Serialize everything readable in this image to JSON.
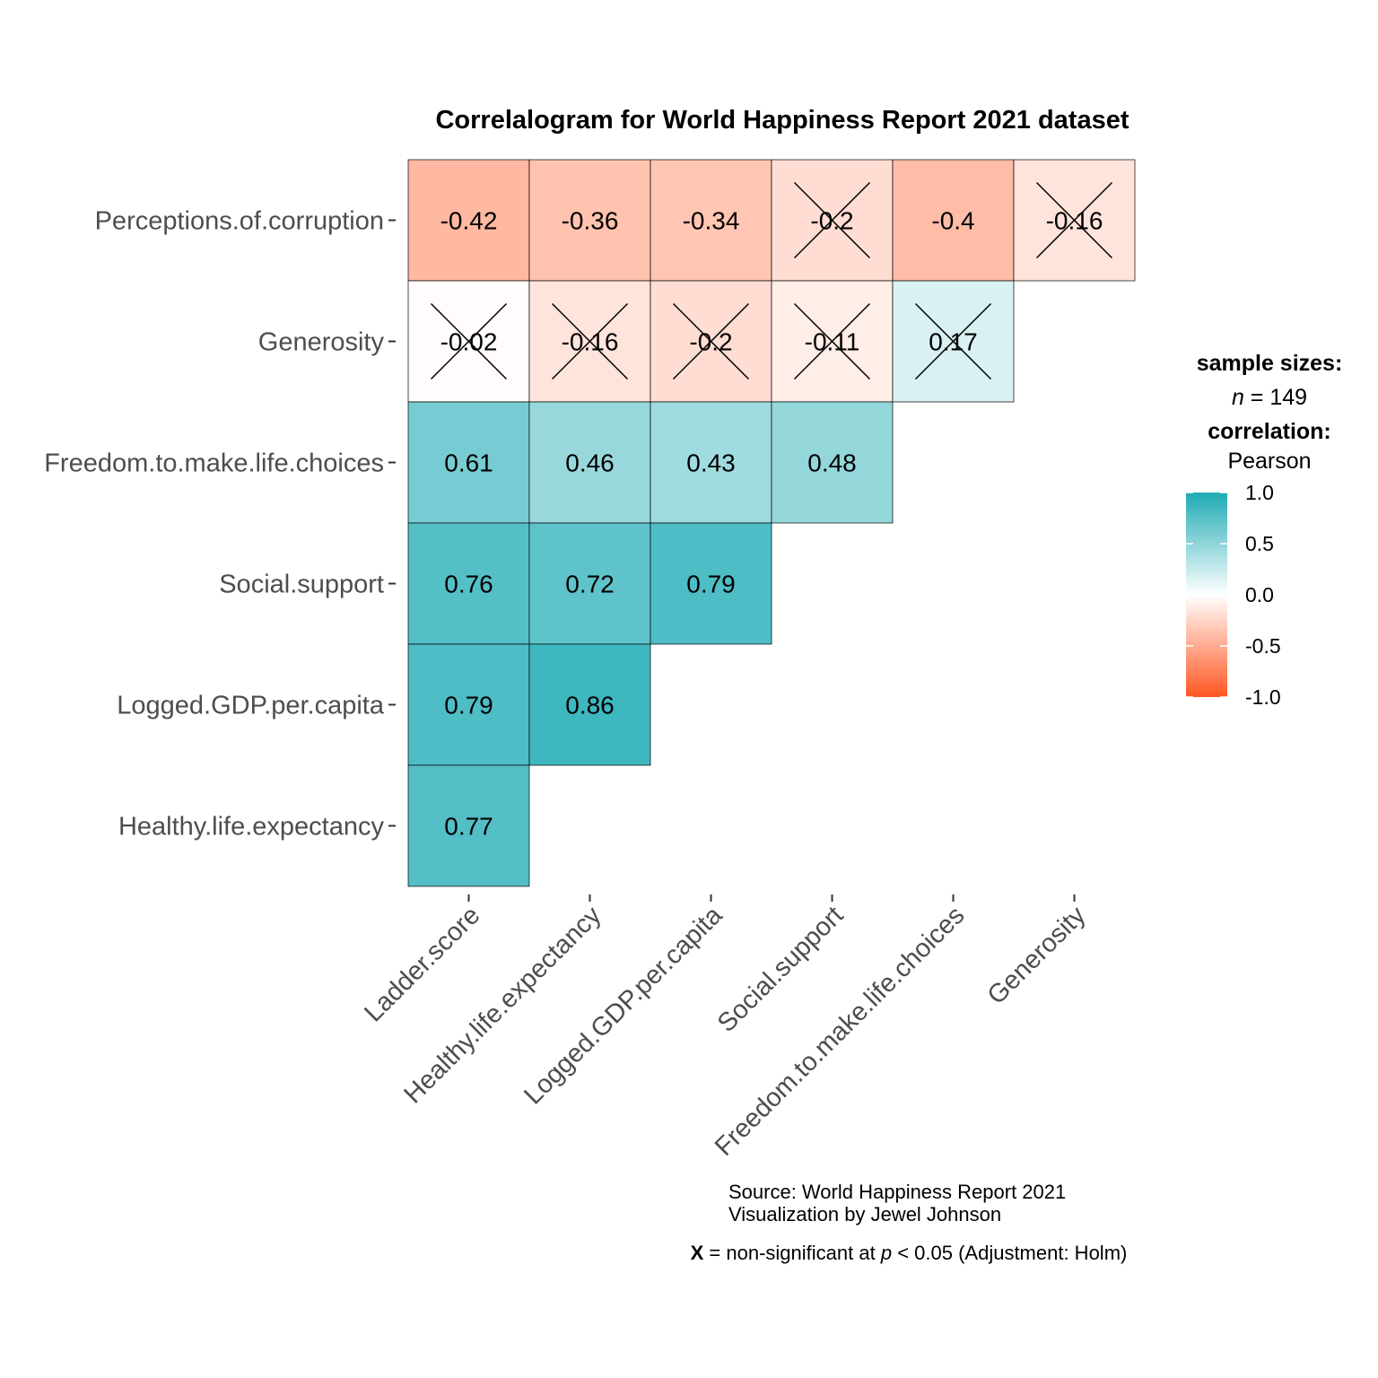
{
  "chart_data": {
    "type": "heatmap",
    "title": "Correlalogram for World Happiness Report 2021 dataset",
    "x_categories": [
      "Ladder.score",
      "Healthy.life.expectancy",
      "Logged.GDP.per.capita",
      "Social.support",
      "Freedom.to.make.life.choices",
      "Generosity"
    ],
    "y_categories": [
      "Perceptions.of.corruption",
      "Generosity",
      "Freedom.to.make.life.choices",
      "Social.support",
      "Logged.GDP.per.capita",
      "Healthy.life.expectancy"
    ],
    "cells": [
      {
        "x": "Ladder.score",
        "y": "Perceptions.of.corruption",
        "value": -0.42,
        "label": "-0.42",
        "significant": true
      },
      {
        "x": "Healthy.life.expectancy",
        "y": "Perceptions.of.corruption",
        "value": -0.36,
        "label": "-0.36",
        "significant": true
      },
      {
        "x": "Logged.GDP.per.capita",
        "y": "Perceptions.of.corruption",
        "value": -0.34,
        "label": "-0.34",
        "significant": true
      },
      {
        "x": "Social.support",
        "y": "Perceptions.of.corruption",
        "value": -0.2,
        "label": "-0.2",
        "significant": false
      },
      {
        "x": "Freedom.to.make.life.choices",
        "y": "Perceptions.of.corruption",
        "value": -0.4,
        "label": "-0.4",
        "significant": true
      },
      {
        "x": "Generosity",
        "y": "Perceptions.of.corruption",
        "value": -0.16,
        "label": "-0.16",
        "significant": false
      },
      {
        "x": "Ladder.score",
        "y": "Generosity",
        "value": -0.02,
        "label": "-0.02",
        "significant": false
      },
      {
        "x": "Healthy.life.expectancy",
        "y": "Generosity",
        "value": -0.16,
        "label": "-0.16",
        "significant": false
      },
      {
        "x": "Logged.GDP.per.capita",
        "y": "Generosity",
        "value": -0.2,
        "label": "-0.2",
        "significant": false
      },
      {
        "x": "Social.support",
        "y": "Generosity",
        "value": -0.11,
        "label": "-0.11",
        "significant": false
      },
      {
        "x": "Freedom.to.make.life.choices",
        "y": "Generosity",
        "value": 0.17,
        "label": "0.17",
        "significant": false
      },
      {
        "x": "Ladder.score",
        "y": "Freedom.to.make.life.choices",
        "value": 0.61,
        "label": "0.61",
        "significant": true
      },
      {
        "x": "Healthy.life.expectancy",
        "y": "Freedom.to.make.life.choices",
        "value": 0.46,
        "label": "0.46",
        "significant": true
      },
      {
        "x": "Logged.GDP.per.capita",
        "y": "Freedom.to.make.life.choices",
        "value": 0.43,
        "label": "0.43",
        "significant": true
      },
      {
        "x": "Social.support",
        "y": "Freedom.to.make.life.choices",
        "value": 0.48,
        "label": "0.48",
        "significant": true
      },
      {
        "x": "Ladder.score",
        "y": "Social.support",
        "value": 0.76,
        "label": "0.76",
        "significant": true
      },
      {
        "x": "Healthy.life.expectancy",
        "y": "Social.support",
        "value": 0.72,
        "label": "0.72",
        "significant": true
      },
      {
        "x": "Logged.GDP.per.capita",
        "y": "Social.support",
        "value": 0.79,
        "label": "0.79",
        "significant": true
      },
      {
        "x": "Ladder.score",
        "y": "Logged.GDP.per.capita",
        "value": 0.79,
        "label": "0.79",
        "significant": true
      },
      {
        "x": "Healthy.life.expectancy",
        "y": "Logged.GDP.per.capita",
        "value": 0.86,
        "label": "0.86",
        "significant": true
      },
      {
        "x": "Ladder.score",
        "y": "Healthy.life.expectancy",
        "value": 0.77,
        "label": "0.77",
        "significant": true
      }
    ],
    "legend": {
      "sample_sizes_title": "sample sizes:",
      "n_symbol": "n",
      "n_rest": " = 149",
      "correlation_title": "correlation:",
      "method": "Pearson",
      "ticks": [
        1.0,
        0.5,
        0.0,
        -0.5,
        -1.0
      ],
      "tick_labels": [
        "1.0",
        "0.5",
        "0.0",
        "-0.5",
        "-1.0"
      ],
      "color_high": "#1FABB5",
      "color_mid": "#FFFFFF",
      "color_low": "#FF5722"
    },
    "caption": {
      "line1": "Source: World Happiness Report 2021",
      "line2": "Visualization by Jewel Johnson",
      "note_x": "X",
      "note_mid": " = non-significant at ",
      "note_p": "p",
      "note_end": " < 0.05 (Adjustment: Holm)"
    }
  }
}
